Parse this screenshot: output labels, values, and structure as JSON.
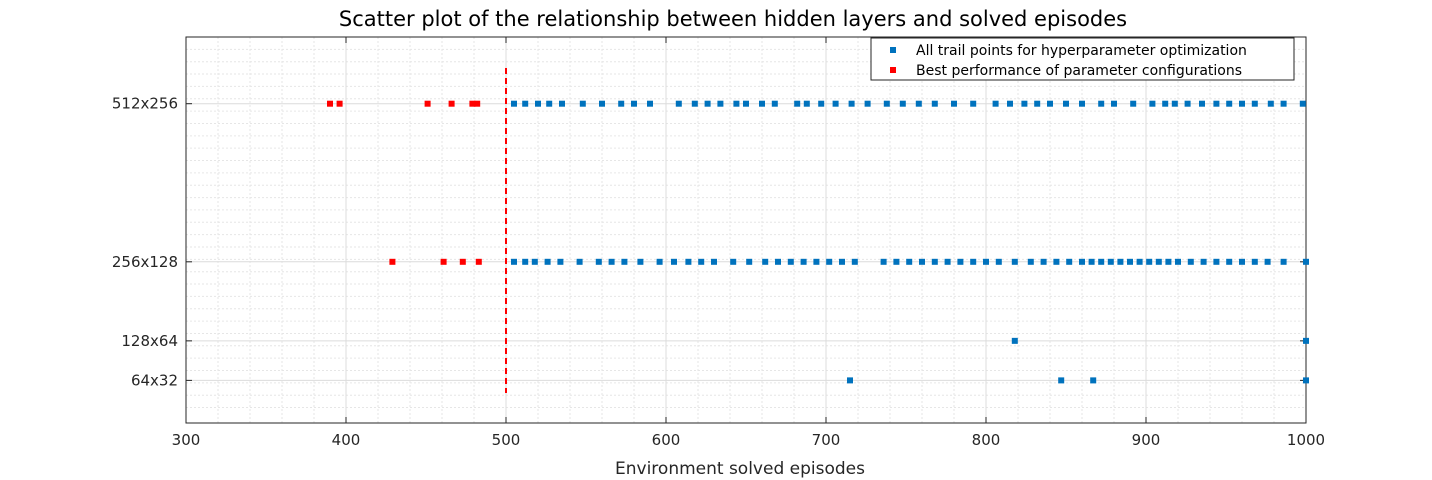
{
  "chart_data": {
    "type": "scatter",
    "title": "Scatter plot of the relationship between hidden layers and solved episodes",
    "xlabel": "Environment solved episodes",
    "ylabel": "",
    "xlim": [
      300,
      1000
    ],
    "x_ticks": [
      "300",
      "400",
      "500",
      "600",
      "700",
      "800",
      "900",
      "1000"
    ],
    "y_categories": [
      "64x32",
      "128x64",
      "256x128",
      "512x256"
    ],
    "grid": true,
    "legend_position": "top-right",
    "threshold_line": {
      "x": 500,
      "color": "#ff0000",
      "style": "dashed"
    },
    "series": [
      {
        "name": "All trail points for hyperparameter optimization",
        "color": "#0072bd",
        "points": [
          {
            "x": 505,
            "y": "512x256"
          },
          {
            "x": 512,
            "y": "512x256"
          },
          {
            "x": 520,
            "y": "512x256"
          },
          {
            "x": 527,
            "y": "512x256"
          },
          {
            "x": 535,
            "y": "512x256"
          },
          {
            "x": 548,
            "y": "512x256"
          },
          {
            "x": 560,
            "y": "512x256"
          },
          {
            "x": 572,
            "y": "512x256"
          },
          {
            "x": 580,
            "y": "512x256"
          },
          {
            "x": 590,
            "y": "512x256"
          },
          {
            "x": 608,
            "y": "512x256"
          },
          {
            "x": 618,
            "y": "512x256"
          },
          {
            "x": 626,
            "y": "512x256"
          },
          {
            "x": 634,
            "y": "512x256"
          },
          {
            "x": 644,
            "y": "512x256"
          },
          {
            "x": 650,
            "y": "512x256"
          },
          {
            "x": 660,
            "y": "512x256"
          },
          {
            "x": 668,
            "y": "512x256"
          },
          {
            "x": 682,
            "y": "512x256"
          },
          {
            "x": 688,
            "y": "512x256"
          },
          {
            "x": 697,
            "y": "512x256"
          },
          {
            "x": 706,
            "y": "512x256"
          },
          {
            "x": 716,
            "y": "512x256"
          },
          {
            "x": 726,
            "y": "512x256"
          },
          {
            "x": 738,
            "y": "512x256"
          },
          {
            "x": 748,
            "y": "512x256"
          },
          {
            "x": 758,
            "y": "512x256"
          },
          {
            "x": 768,
            "y": "512x256"
          },
          {
            "x": 780,
            "y": "512x256"
          },
          {
            "x": 792,
            "y": "512x256"
          },
          {
            "x": 806,
            "y": "512x256"
          },
          {
            "x": 815,
            "y": "512x256"
          },
          {
            "x": 824,
            "y": "512x256"
          },
          {
            "x": 832,
            "y": "512x256"
          },
          {
            "x": 840,
            "y": "512x256"
          },
          {
            "x": 850,
            "y": "512x256"
          },
          {
            "x": 860,
            "y": "512x256"
          },
          {
            "x": 872,
            "y": "512x256"
          },
          {
            "x": 880,
            "y": "512x256"
          },
          {
            "x": 892,
            "y": "512x256"
          },
          {
            "x": 904,
            "y": "512x256"
          },
          {
            "x": 912,
            "y": "512x256"
          },
          {
            "x": 918,
            "y": "512x256"
          },
          {
            "x": 926,
            "y": "512x256"
          },
          {
            "x": 935,
            "y": "512x256"
          },
          {
            "x": 944,
            "y": "512x256"
          },
          {
            "x": 952,
            "y": "512x256"
          },
          {
            "x": 960,
            "y": "512x256"
          },
          {
            "x": 968,
            "y": "512x256"
          },
          {
            "x": 978,
            "y": "512x256"
          },
          {
            "x": 986,
            "y": "512x256"
          },
          {
            "x": 998,
            "y": "512x256"
          },
          {
            "x": 505,
            "y": "256x128"
          },
          {
            "x": 512,
            "y": "256x128"
          },
          {
            "x": 518,
            "y": "256x128"
          },
          {
            "x": 526,
            "y": "256x128"
          },
          {
            "x": 534,
            "y": "256x128"
          },
          {
            "x": 546,
            "y": "256x128"
          },
          {
            "x": 558,
            "y": "256x128"
          },
          {
            "x": 566,
            "y": "256x128"
          },
          {
            "x": 574,
            "y": "256x128"
          },
          {
            "x": 584,
            "y": "256x128"
          },
          {
            "x": 596,
            "y": "256x128"
          },
          {
            "x": 605,
            "y": "256x128"
          },
          {
            "x": 614,
            "y": "256x128"
          },
          {
            "x": 622,
            "y": "256x128"
          },
          {
            "x": 630,
            "y": "256x128"
          },
          {
            "x": 642,
            "y": "256x128"
          },
          {
            "x": 652,
            "y": "256x128"
          },
          {
            "x": 662,
            "y": "256x128"
          },
          {
            "x": 670,
            "y": "256x128"
          },
          {
            "x": 678,
            "y": "256x128"
          },
          {
            "x": 686,
            "y": "256x128"
          },
          {
            "x": 694,
            "y": "256x128"
          },
          {
            "x": 702,
            "y": "256x128"
          },
          {
            "x": 710,
            "y": "256x128"
          },
          {
            "x": 718,
            "y": "256x128"
          },
          {
            "x": 736,
            "y": "256x128"
          },
          {
            "x": 744,
            "y": "256x128"
          },
          {
            "x": 752,
            "y": "256x128"
          },
          {
            "x": 760,
            "y": "256x128"
          },
          {
            "x": 768,
            "y": "256x128"
          },
          {
            "x": 776,
            "y": "256x128"
          },
          {
            "x": 784,
            "y": "256x128"
          },
          {
            "x": 792,
            "y": "256x128"
          },
          {
            "x": 800,
            "y": "256x128"
          },
          {
            "x": 808,
            "y": "256x128"
          },
          {
            "x": 818,
            "y": "256x128"
          },
          {
            "x": 828,
            "y": "256x128"
          },
          {
            "x": 836,
            "y": "256x128"
          },
          {
            "x": 844,
            "y": "256x128"
          },
          {
            "x": 852,
            "y": "256x128"
          },
          {
            "x": 860,
            "y": "256x128"
          },
          {
            "x": 866,
            "y": "256x128"
          },
          {
            "x": 872,
            "y": "256x128"
          },
          {
            "x": 878,
            "y": "256x128"
          },
          {
            "x": 884,
            "y": "256x128"
          },
          {
            "x": 890,
            "y": "256x128"
          },
          {
            "x": 896,
            "y": "256x128"
          },
          {
            "x": 902,
            "y": "256x128"
          },
          {
            "x": 908,
            "y": "256x128"
          },
          {
            "x": 914,
            "y": "256x128"
          },
          {
            "x": 920,
            "y": "256x128"
          },
          {
            "x": 928,
            "y": "256x128"
          },
          {
            "x": 936,
            "y": "256x128"
          },
          {
            "x": 944,
            "y": "256x128"
          },
          {
            "x": 952,
            "y": "256x128"
          },
          {
            "x": 960,
            "y": "256x128"
          },
          {
            "x": 968,
            "y": "256x128"
          },
          {
            "x": 976,
            "y": "256x128"
          },
          {
            "x": 986,
            "y": "256x128"
          },
          {
            "x": 1000,
            "y": "256x128"
          },
          {
            "x": 818,
            "y": "128x64"
          },
          {
            "x": 1000,
            "y": "128x64"
          },
          {
            "x": 715,
            "y": "64x32"
          },
          {
            "x": 847,
            "y": "64x32"
          },
          {
            "x": 867,
            "y": "64x32"
          },
          {
            "x": 1000,
            "y": "64x32"
          }
        ]
      },
      {
        "name": "Best performance of parameter configurations",
        "color": "#ff0000",
        "points": [
          {
            "x": 390,
            "y": "512x256"
          },
          {
            "x": 396,
            "y": "512x256"
          },
          {
            "x": 451,
            "y": "512x256"
          },
          {
            "x": 466,
            "y": "512x256"
          },
          {
            "x": 479,
            "y": "512x256"
          },
          {
            "x": 482,
            "y": "512x256"
          },
          {
            "x": 429,
            "y": "256x128"
          },
          {
            "x": 461,
            "y": "256x128"
          },
          {
            "x": 473,
            "y": "256x128"
          },
          {
            "x": 483,
            "y": "256x128"
          }
        ]
      }
    ]
  }
}
